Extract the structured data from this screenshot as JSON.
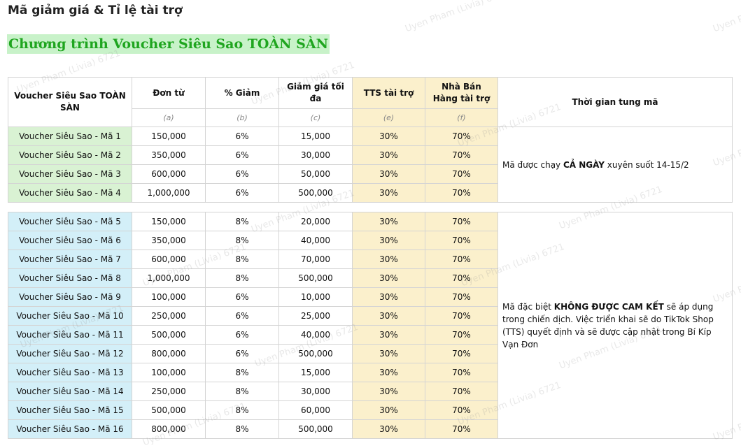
{
  "page_title": "Mã giảm giá & Tỉ lệ tài trợ",
  "program_title": "Chương trình Voucher Siêu Sao TOÀN SÀN",
  "watermark_text": "Uyen Pham (Livia) 6721",
  "table": {
    "headers": {
      "voucher": "Voucher Siêu Sao TOÀN SÀN",
      "min_order": "Đơn từ",
      "discount": "% Giảm",
      "max_discount": "Giảm giá tối đa",
      "tts_share": "TTS tài trợ",
      "seller_share": "Nhà Bán Hàng tài trợ",
      "time": "Thời gian tung mã"
    },
    "subheaders": {
      "min_order": "(a)",
      "discount": "(b)",
      "max_discount": "(c)",
      "tts_share": "(e)",
      "seller_share": "(f)"
    },
    "group1": {
      "note_prefix": "Mã được chạy ",
      "note_bold": "CẢ NGÀY",
      "note_suffix": " xuyên suốt 14-15/2",
      "rows": [
        {
          "name": "Voucher Siêu Sao - Mã 1",
          "min": "150,000",
          "pct": "6%",
          "max": "15,000",
          "tts": "30%",
          "seller": "70%"
        },
        {
          "name": "Voucher Siêu Sao - Mã 2",
          "min": "350,000",
          "pct": "6%",
          "max": "30,000",
          "tts": "30%",
          "seller": "70%"
        },
        {
          "name": "Voucher Siêu Sao - Mã 3",
          "min": "600,000",
          "pct": "6%",
          "max": "50,000",
          "tts": "30%",
          "seller": "70%"
        },
        {
          "name": "Voucher Siêu Sao - Mã 4",
          "min": "1,000,000",
          "pct": "6%",
          "max": "500,000",
          "tts": "30%",
          "seller": "70%"
        }
      ]
    },
    "group2": {
      "note_prefix": "Mã đặc biệt ",
      "note_bold": "KHÔNG ĐƯỢC CAM KẾT",
      "note_suffix": " sẽ áp dụng trong chiến dịch. Việc triển khai sẽ do TikTok Shop (TTS) quyết định và sẽ được cập nhật trong Bí Kíp Vạn Đơn",
      "rows": [
        {
          "name": "Voucher Siêu Sao - Mã 5",
          "min": "150,000",
          "pct": "8%",
          "max": "20,000",
          "tts": "30%",
          "seller": "70%"
        },
        {
          "name": "Voucher Siêu Sao - Mã 6",
          "min": "350,000",
          "pct": "8%",
          "max": "40,000",
          "tts": "30%",
          "seller": "70%"
        },
        {
          "name": "Voucher Siêu Sao - Mã 7",
          "min": "600,000",
          "pct": "8%",
          "max": "70,000",
          "tts": "30%",
          "seller": "70%"
        },
        {
          "name": "Voucher Siêu Sao - Mã 8",
          "min": "1,000,000",
          "pct": "8%",
          "max": "500,000",
          "tts": "30%",
          "seller": "70%"
        },
        {
          "name": "Voucher Siêu Sao - Mã 9",
          "min": "100,000",
          "pct": "6%",
          "max": "10,000",
          "tts": "30%",
          "seller": "70%"
        },
        {
          "name": "Voucher Siêu Sao - Mã 10",
          "min": "250,000",
          "pct": "6%",
          "max": "25,000",
          "tts": "30%",
          "seller": "70%"
        },
        {
          "name": "Voucher Siêu Sao - Mã 11",
          "min": "500,000",
          "pct": "6%",
          "max": "40,000",
          "tts": "30%",
          "seller": "70%"
        },
        {
          "name": "Voucher Siêu Sao - Mã 12",
          "min": "800,000",
          "pct": "6%",
          "max": "500,000",
          "tts": "30%",
          "seller": "70%"
        },
        {
          "name": "Voucher Siêu Sao - Mã 13",
          "min": "100,000",
          "pct": "8%",
          "max": "15,000",
          "tts": "30%",
          "seller": "70%"
        },
        {
          "name": "Voucher Siêu Sao - Mã 14",
          "min": "250,000",
          "pct": "8%",
          "max": "30,000",
          "tts": "30%",
          "seller": "70%"
        },
        {
          "name": "Voucher Siêu Sao - Mã 15",
          "min": "500,000",
          "pct": "8%",
          "max": "60,000",
          "tts": "30%",
          "seller": "70%"
        },
        {
          "name": "Voucher Siêu Sao - Mã 16",
          "min": "800,000",
          "pct": "8%",
          "max": "500,000",
          "tts": "30%",
          "seller": "70%"
        }
      ]
    }
  },
  "colors": {
    "title_highlight_bg": "#c8f2c9",
    "title_text": "#1fa51f",
    "group1_bg": "#d9f2d3",
    "group2_bg": "#d3eff8",
    "funding_bg": "#fbf0cc"
  }
}
